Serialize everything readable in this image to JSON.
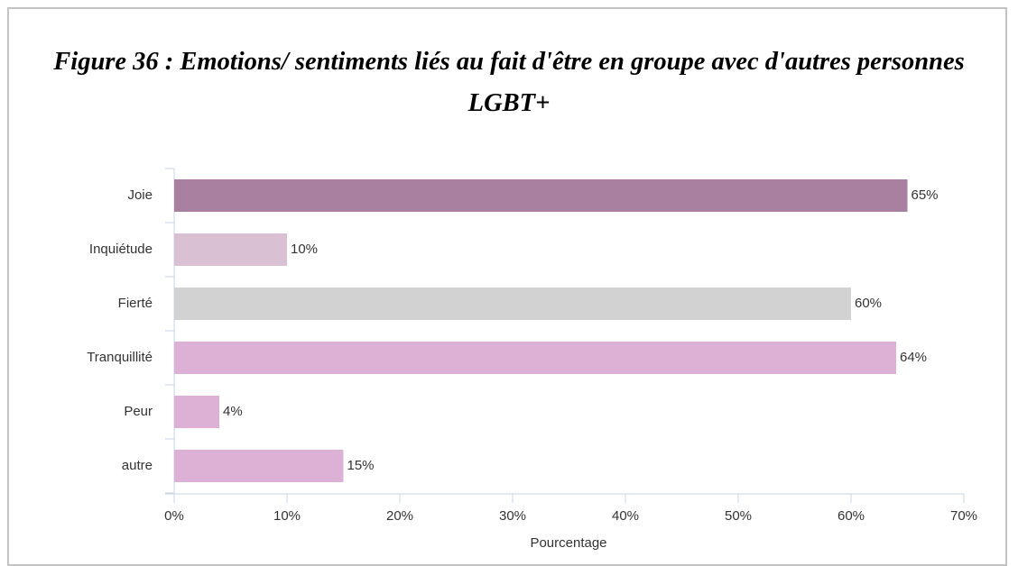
{
  "chart_data": {
    "type": "bar",
    "orientation": "horizontal",
    "title": "Figure 36 : Emotions/ sentiments liés au fait d'être en groupe avec d'autres personnes LGBT+",
    "xlabel": "Pourcentage",
    "categories": [
      "Joie",
      "Inquiétude",
      "Fierté",
      "Tranquillité",
      "Peur",
      "autre"
    ],
    "values": [
      65,
      10,
      60,
      64,
      4,
      15
    ],
    "value_labels": [
      "65%",
      "10%",
      "60%",
      "64%",
      "4%",
      "15%"
    ],
    "colors": [
      "#a9809f",
      "#d9c0d2",
      "#d2d2d2",
      "#ddb0d5",
      "#ddb0d5",
      "#ddb0d5"
    ],
    "xlim": [
      0,
      70
    ],
    "xticks": [
      {
        "value": 0,
        "label": "0%"
      },
      {
        "value": 10,
        "label": "10%"
      },
      {
        "value": 20,
        "label": "20%"
      },
      {
        "value": 30,
        "label": "30%"
      },
      {
        "value": 40,
        "label": "40%"
      },
      {
        "value": 50,
        "label": "50%"
      },
      {
        "value": 60,
        "label": "60%"
      },
      {
        "value": 70,
        "label": "70%"
      }
    ]
  }
}
